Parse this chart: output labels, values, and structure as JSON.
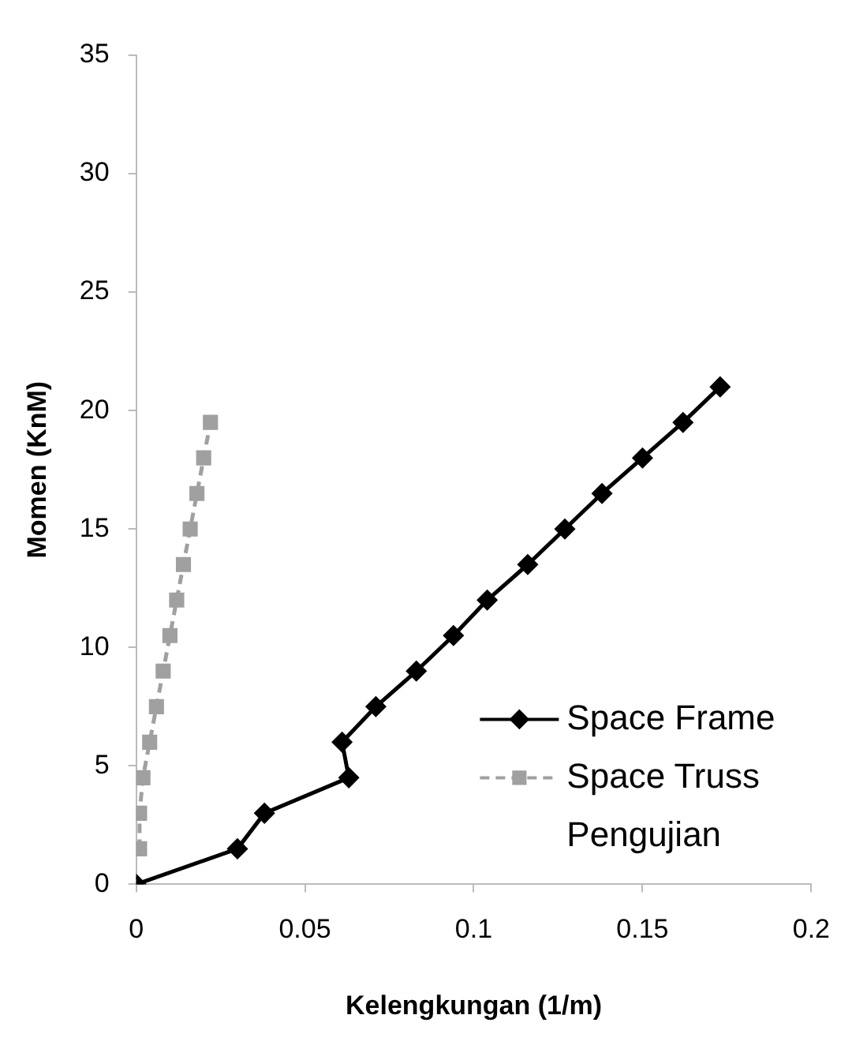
{
  "chart_data": {
    "type": "line",
    "xlabel": "Kelengkungan (1/m)",
    "ylabel": "Momen (KnM)",
    "xlim": [
      0,
      0.2
    ],
    "xticks": [
      0,
      0.05,
      0.1,
      0.15,
      0.2
    ],
    "ylim": [
      0,
      35
    ],
    "yticks": [
      0,
      5,
      10,
      15,
      20,
      25,
      30,
      35
    ],
    "grid": false,
    "legend": "right",
    "series": [
      {
        "name": "Space Frame",
        "color": "#000000",
        "marker": "diamond",
        "line_style": "solid",
        "x": [
          0,
          0.03,
          0.038,
          0.063,
          0.061,
          0.071,
          0.083,
          0.094,
          0.104,
          0.116,
          0.127,
          0.138,
          0.15,
          0.162,
          0.173
        ],
        "values": [
          0,
          1.5,
          3,
          4.5,
          6,
          7.5,
          9,
          10.5,
          12,
          13.5,
          15,
          16.5,
          18,
          19.5,
          21
        ]
      },
      {
        "name": "Space Truss",
        "color": "#a0a0a0",
        "marker": "square",
        "line_style": "dashed",
        "x": [
          0.001,
          0.001,
          0.002,
          0.004,
          0.006,
          0.008,
          0.01,
          0.012,
          0.014,
          0.016,
          0.018,
          0.02,
          0.022
        ],
        "values": [
          1.5,
          3,
          4.5,
          6,
          7.5,
          9,
          10.5,
          12,
          13.5,
          15,
          16.5,
          18,
          19.5
        ]
      },
      {
        "name": "Pengujian"
      }
    ]
  }
}
